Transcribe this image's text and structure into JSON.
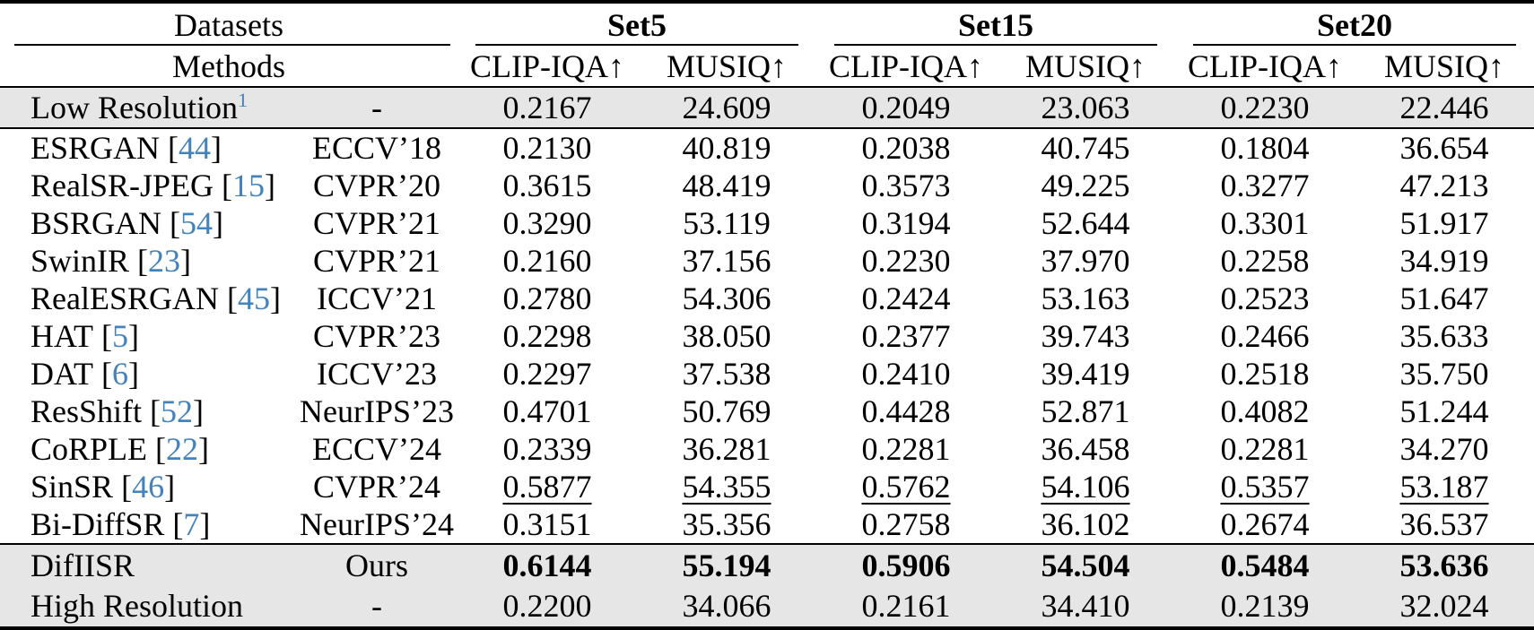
{
  "header": {
    "datasets_label": "Datasets",
    "methods_label": "Methods",
    "groups": [
      {
        "name": "Set5",
        "metrics": [
          "CLIP-IQA↑",
          "MUSIQ↑"
        ]
      },
      {
        "name": "Set15",
        "metrics": [
          "CLIP-IQA↑",
          "MUSIQ↑"
        ]
      },
      {
        "name": "Set20",
        "metrics": [
          "CLIP-IQA↑",
          "MUSIQ↑"
        ]
      }
    ]
  },
  "rows": [
    {
      "method": "Low Resolution",
      "superscript": "1",
      "citation": "",
      "venue": "-",
      "values": [
        "0.2167",
        "24.609",
        "0.2049",
        "23.063",
        "0.2230",
        "22.446"
      ],
      "emphasis": "none",
      "highlight": true
    },
    {
      "method": "ESRGAN",
      "superscript": "",
      "citation": "44",
      "venue": "ECCV’18",
      "values": [
        "0.2130",
        "40.819",
        "0.2038",
        "40.745",
        "0.1804",
        "36.654"
      ],
      "emphasis": "none",
      "highlight": false
    },
    {
      "method": "RealSR-JPEG",
      "superscript": "",
      "citation": "15",
      "venue": "CVPR’20",
      "values": [
        "0.3615",
        "48.419",
        "0.3573",
        "49.225",
        "0.3277",
        "47.213"
      ],
      "emphasis": "none",
      "highlight": false
    },
    {
      "method": "BSRGAN",
      "superscript": "",
      "citation": "54",
      "venue": "CVPR’21",
      "values": [
        "0.3290",
        "53.119",
        "0.3194",
        "52.644",
        "0.3301",
        "51.917"
      ],
      "emphasis": "none",
      "highlight": false
    },
    {
      "method": "SwinIR",
      "superscript": "",
      "citation": "23",
      "venue": "CVPR’21",
      "values": [
        "0.2160",
        "37.156",
        "0.2230",
        "37.970",
        "0.2258",
        "34.919"
      ],
      "emphasis": "none",
      "highlight": false
    },
    {
      "method": "RealESRGAN",
      "superscript": "",
      "citation": "45",
      "venue": "ICCV’21",
      "values": [
        "0.2780",
        "54.306",
        "0.2424",
        "53.163",
        "0.2523",
        "51.647"
      ],
      "emphasis": "none",
      "highlight": false
    },
    {
      "method": "HAT",
      "superscript": "",
      "citation": "5",
      "venue": "CVPR’23",
      "values": [
        "0.2298",
        "38.050",
        "0.2377",
        "39.743",
        "0.2466",
        "35.633"
      ],
      "emphasis": "none",
      "highlight": false
    },
    {
      "method": "DAT",
      "superscript": "",
      "citation": "6",
      "venue": "ICCV’23",
      "values": [
        "0.2297",
        "37.538",
        "0.2410",
        "39.419",
        "0.2518",
        "35.750"
      ],
      "emphasis": "none",
      "highlight": false
    },
    {
      "method": "ResShift",
      "superscript": "",
      "citation": "52",
      "venue": "NeurIPS’23",
      "values": [
        "0.4701",
        "50.769",
        "0.4428",
        "52.871",
        "0.4082",
        "51.244"
      ],
      "emphasis": "none",
      "highlight": false
    },
    {
      "method": "CoRPLE",
      "superscript": "",
      "citation": "22",
      "venue": "ECCV’24",
      "values": [
        "0.2339",
        "36.281",
        "0.2281",
        "36.458",
        "0.2281",
        "34.270"
      ],
      "emphasis": "none",
      "highlight": false
    },
    {
      "method": "SinSR",
      "superscript": "",
      "citation": "46",
      "venue": "CVPR’24",
      "values": [
        "0.5877",
        "54.355",
        "0.5762",
        "54.106",
        "0.5357",
        "53.187"
      ],
      "emphasis": "underline",
      "highlight": false
    },
    {
      "method": "Bi-DiffSR",
      "superscript": "",
      "citation": "7",
      "venue": "NeurIPS’24",
      "values": [
        "0.3151",
        "35.356",
        "0.2758",
        "36.102",
        "0.2674",
        "36.537"
      ],
      "emphasis": "none",
      "highlight": false
    },
    {
      "method": "DifIISR",
      "superscript": "",
      "citation": "",
      "venue": "Ours",
      "values": [
        "0.6144",
        "55.194",
        "0.5906",
        "54.504",
        "0.5484",
        "53.636"
      ],
      "emphasis": "bold",
      "highlight": true
    },
    {
      "method": "High Resolution",
      "superscript": "",
      "citation": "",
      "venue": "-",
      "values": [
        "0.2200",
        "34.066",
        "0.2161",
        "34.410",
        "0.2139",
        "32.024"
      ],
      "emphasis": "none",
      "highlight": true
    }
  ],
  "colors": {
    "citation_blue": "#4383bc",
    "row_highlight_bg": "#e6e6e6",
    "rule_black": "#000000"
  }
}
